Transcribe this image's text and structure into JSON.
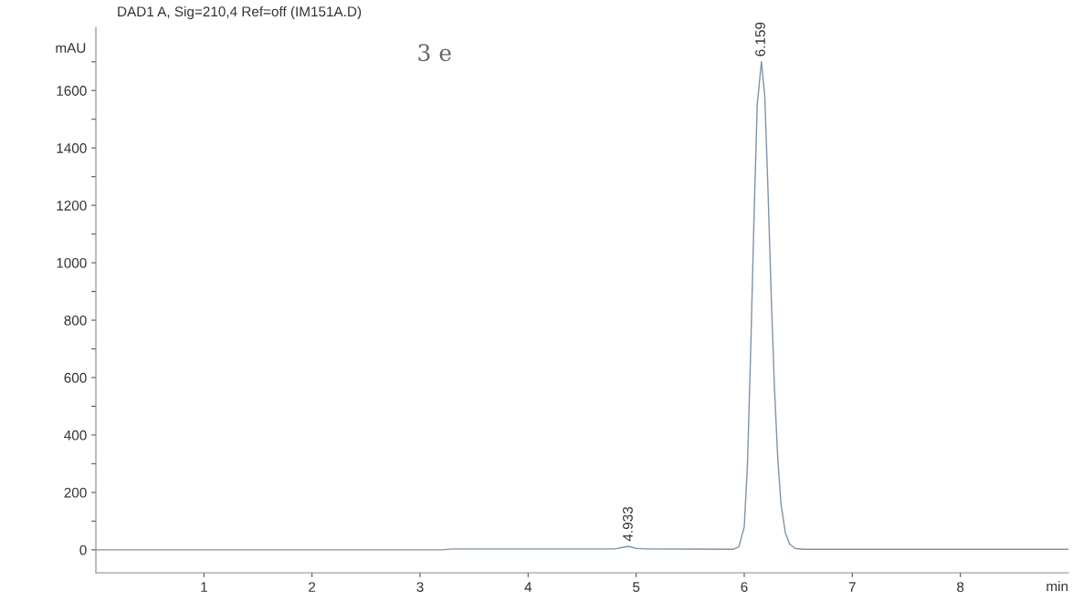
{
  "chart_data": {
    "type": "line",
    "title": "DAD1 A, Sig=210,4 Ref=off (IM151A.D)",
    "xlabel": "min",
    "ylabel": "mAU",
    "x": [
      0,
      3.2,
      3.3,
      4.8,
      4.87,
      4.93,
      5.0,
      5.1,
      5.9,
      5.95,
      6.0,
      6.03,
      6.06,
      6.09,
      6.12,
      6.159,
      6.19,
      6.22,
      6.25,
      6.28,
      6.31,
      6.34,
      6.38,
      6.42,
      6.47,
      6.55,
      9.0
    ],
    "series": [
      {
        "color": "#7f93a8",
        "values": [
          0,
          0,
          3,
          3,
          8,
          12,
          5,
          3,
          2,
          10,
          80,
          300,
          700,
          1150,
          1550,
          1700,
          1580,
          1250,
          880,
          560,
          320,
          160,
          60,
          20,
          5,
          2,
          2
        ]
      }
    ],
    "xlim": [
      0,
      9.0
    ],
    "xticks": [
      1,
      2,
      3,
      4,
      5,
      6,
      7,
      8
    ],
    "ylim": [
      -80,
      1820
    ],
    "yticks": [
      0,
      {
        "value": 100,
        "label": null
      },
      200,
      {
        "value": 300,
        "label": null
      },
      400,
      {
        "value": 500,
        "label": null
      },
      600,
      {
        "value": 700,
        "label": null
      },
      800,
      {
        "value": 900,
        "label": null
      },
      1000,
      {
        "value": 1100,
        "label": null
      },
      1200,
      {
        "value": 1300,
        "label": null
      },
      1400,
      {
        "value": 1500,
        "label": null
      },
      1600,
      {
        "value": 1700,
        "label": null
      }
    ],
    "annotations": [
      {
        "text": "4.933",
        "x": 4.933,
        "y": 12
      },
      {
        "text": "6.159",
        "x": 6.159,
        "y": 1700
      },
      "3 e"
    ],
    "grid": false,
    "legend": false,
    "marker": "none",
    "line_style": "solid"
  }
}
